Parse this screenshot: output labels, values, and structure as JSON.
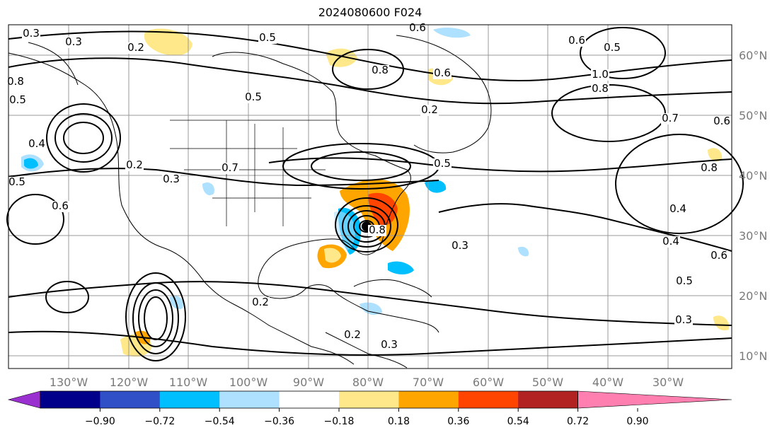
{
  "title": "2024080600 F024",
  "lon_labels": [
    "130°W",
    "120°W",
    "110°W",
    "100°W",
    "90°W",
    "80°W",
    "70°W",
    "60°W",
    "50°W",
    "40°W",
    "30°W"
  ],
  "lat_labels": [
    "60°N",
    "50°N",
    "40°N",
    "30°N",
    "20°N",
    "10°N"
  ],
  "colorbar": {
    "tick_labels": [
      "−0.90",
      "−0.72",
      "−0.54",
      "−0.36",
      "−0.18",
      "0.18",
      "0.36",
      "0.54",
      "0.72",
      "0.90"
    ],
    "colors": [
      "#9b30d0",
      "#00008b",
      "#3050c8",
      "#00bfff",
      "#aee0ff",
      "#ffffff",
      "#ffe88a",
      "#ffa500",
      "#ff4500",
      "#b22222",
      "#ff80b0"
    ]
  },
  "contour_labels": [
    "0.3",
    "0.3",
    "0.5",
    "0.2",
    "0.6",
    "0.6",
    "0.5",
    "0.8",
    "0.6",
    "0.5",
    "1.0",
    "0.8",
    "0.2",
    "0.7",
    "0.6",
    "0.8",
    "0.5",
    "0.4",
    "0.4",
    "0.5",
    "0.3",
    "0.6",
    "0.7",
    "0.2",
    "0.3",
    "0.2",
    "0.2",
    "0.3",
    "0.6",
    "0.5",
    "0.4",
    "0.8",
    "0.5",
    "0.8",
    "0.3"
  ]
}
